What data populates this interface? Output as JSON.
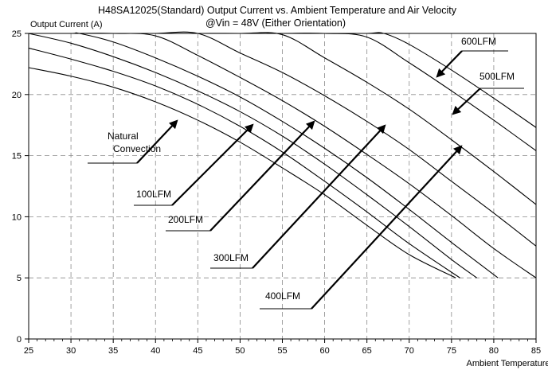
{
  "chart_data": {
    "type": "line",
    "title": "H48SA12025(Standard)  Output Current vs. Ambient Temperature and Air Velocity",
    "subtitle": "@Vin = 48V (Either Orientation)",
    "ylabel": "Output Current (A)",
    "xlabel": "Ambient Temperature",
    "xlim": [
      25,
      85
    ],
    "ylim": [
      0,
      25
    ],
    "xticks": [
      25,
      30,
      35,
      40,
      45,
      50,
      55,
      60,
      65,
      70,
      75,
      80,
      85
    ],
    "yticks": [
      0,
      5,
      10,
      15,
      20,
      25
    ],
    "grid": true,
    "series": [
      {
        "name": "Natural Convection",
        "x": [
          25,
          30,
          35,
          40,
          45,
          50,
          55,
          60,
          65,
          70,
          75.5
        ],
        "y": [
          22.2,
          21.5,
          20.6,
          19.4,
          17.9,
          16.1,
          14.0,
          11.8,
          9.3,
          6.9,
          5.0
        ]
      },
      {
        "name": "100LFM",
        "x": [
          25,
          30,
          35,
          40,
          45,
          50,
          55,
          60,
          65,
          70,
          76
        ],
        "y": [
          23.8,
          22.9,
          21.9,
          20.7,
          19.2,
          17.4,
          15.3,
          12.9,
          10.4,
          7.8,
          5.0
        ]
      },
      {
        "name": "200LFM",
        "x": [
          25,
          30,
          35,
          40,
          45,
          50,
          55,
          60,
          65,
          70,
          75,
          78
        ],
        "y": [
          25.0,
          24.2,
          23.1,
          21.8,
          20.3,
          18.6,
          16.6,
          14.3,
          11.8,
          9.2,
          6.5,
          5.0
        ]
      },
      {
        "name": "300LFM",
        "x": [
          25,
          30,
          31,
          35,
          40,
          45,
          50,
          55,
          60,
          65,
          70,
          75,
          80.5
        ],
        "y": [
          25,
          25,
          25,
          24.3,
          23.0,
          21.5,
          19.8,
          17.8,
          15.6,
          13.2,
          10.6,
          7.9,
          5.0
        ]
      },
      {
        "name": "400LFM",
        "x": [
          25,
          30,
          35,
          40,
          45,
          50,
          55,
          60,
          65,
          70,
          75,
          80,
          85
        ],
        "y": [
          25,
          25,
          25,
          24.8,
          23.2,
          21.4,
          19.5,
          17.4,
          15.1,
          12.7,
          10.1,
          7.4,
          5.0
        ]
      },
      {
        "name": "500LFM",
        "x": [
          25,
          30,
          35,
          40,
          45,
          50,
          55,
          60,
          65,
          70,
          75,
          80,
          85
        ],
        "y": [
          25,
          25,
          25,
          25,
          25,
          23.4,
          21.8,
          19.9,
          17.8,
          15.5,
          12.9,
          10.3,
          7.6
        ]
      },
      {
        "name": "600LFM",
        "x": [
          25,
          30,
          35,
          40,
          45,
          50,
          55,
          60,
          65,
          70,
          75,
          80,
          85
        ],
        "y": [
          25,
          25,
          25,
          25,
          25,
          25,
          24.9,
          23.0,
          21.0,
          18.8,
          16.3,
          13.7,
          11.0
        ]
      },
      {
        "name": "",
        "x": [
          25,
          30,
          35,
          40,
          45,
          50,
          55,
          60,
          65,
          70,
          75,
          80,
          85
        ],
        "y": [
          25,
          25,
          25,
          25,
          25,
          25,
          25,
          25,
          24.7,
          22.6,
          20.3,
          17.9,
          15.4
        ]
      },
      {
        "name": "",
        "x": [
          25,
          30,
          35,
          40,
          45,
          50,
          55,
          60,
          65,
          67,
          70,
          75,
          80,
          85
        ],
        "y": [
          25,
          25,
          25,
          25,
          25,
          25,
          25,
          25,
          25,
          25,
          24.1,
          22.0,
          19.7,
          17.3
        ]
      }
    ],
    "annotations": [
      {
        "label": "Natural\nConvection"
      },
      {
        "label": "100LFM"
      },
      {
        "label": "200LFM"
      },
      {
        "label": "300LFM"
      },
      {
        "label": "400LFM"
      },
      {
        "label": "500LFM"
      },
      {
        "label": "600LFM"
      }
    ]
  }
}
